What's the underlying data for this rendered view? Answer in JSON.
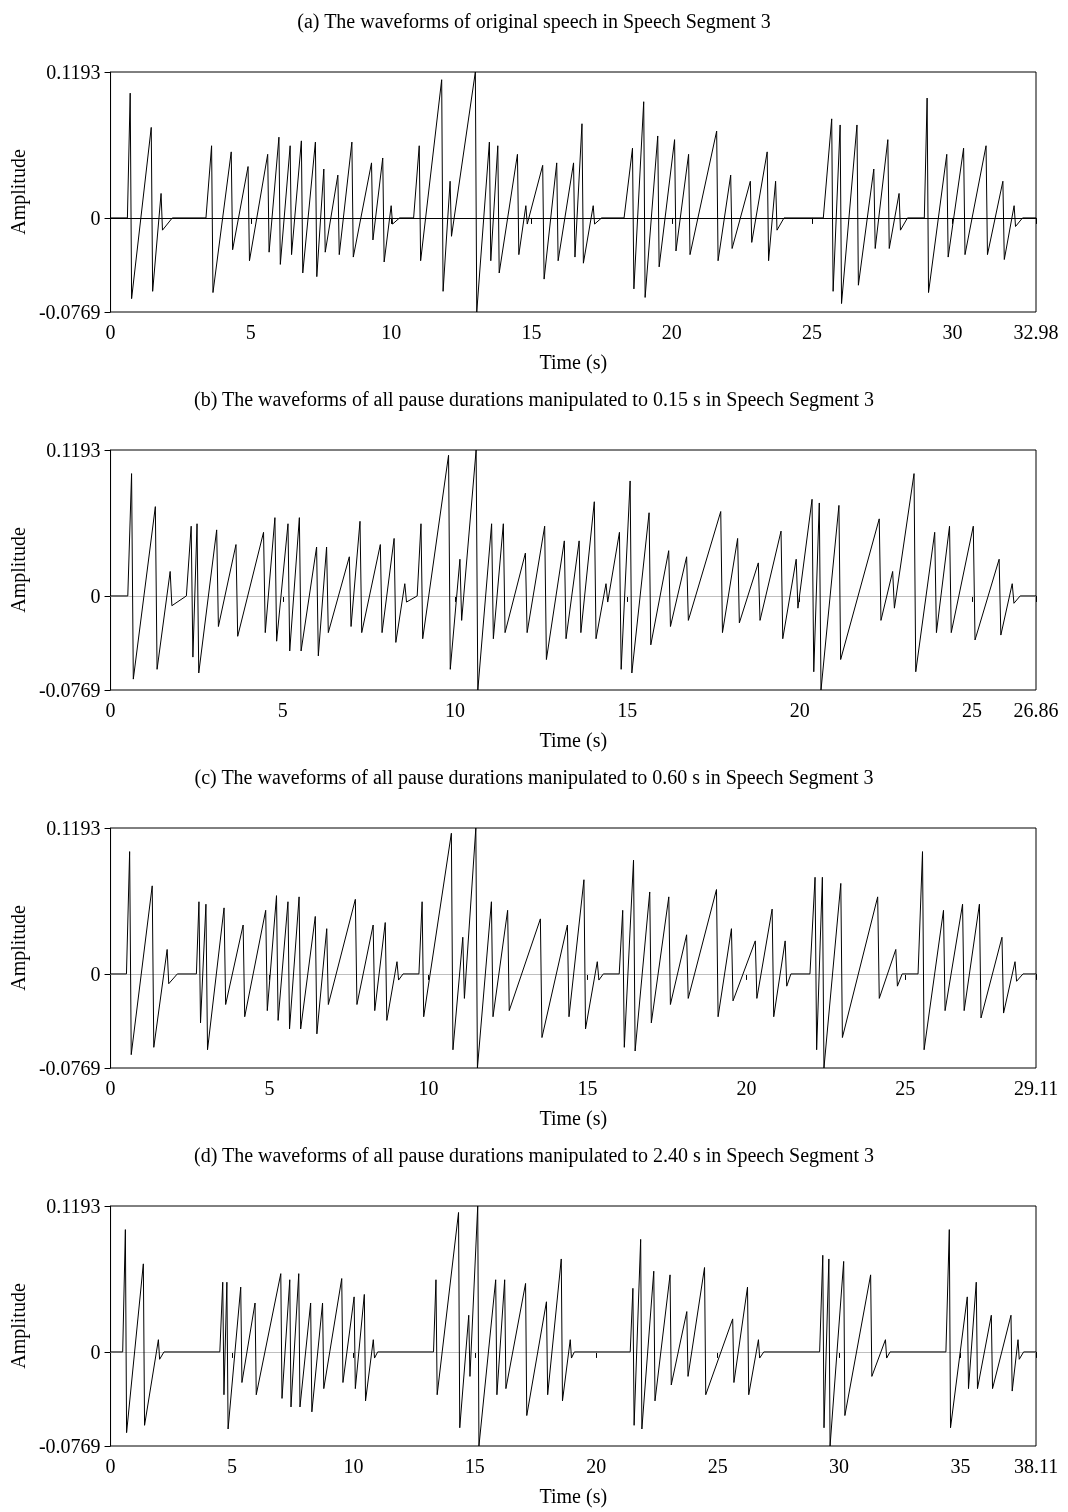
{
  "chart_data": [
    {
      "type": "line",
      "title": "(a) The waveforms of original speech in Speech Segment 3",
      "xlabel": "Time (s)",
      "ylabel": "Amplitude",
      "marker": "none",
      "xlim": [
        0,
        32.98
      ],
      "xticks": [
        0,
        5,
        10,
        15,
        20,
        25,
        30,
        32.98
      ],
      "ylim": [
        -0.0769,
        0.1193
      ],
      "yticks": [
        -0.0769,
        0,
        0.1193
      ],
      "ref_lines": [
        {
          "axis": "y",
          "value": 0,
          "color": "#000000"
        }
      ],
      "series": [
        {
          "color": "#000000",
          "x": [
            0,
            0.6,
            0.7,
            0.75,
            1.45,
            1.5,
            1.8,
            1.85,
            2.2,
            3.4,
            3.6,
            3.65,
            4.3,
            4.35,
            4.9,
            4.95,
            5.6,
            5.65,
            6.0,
            6.05,
            6.4,
            6.45,
            6.8,
            6.85,
            7.3,
            7.35,
            7.6,
            7.65,
            8.1,
            8.15,
            8.6,
            8.65,
            9.3,
            9.35,
            9.7,
            9.75,
            10.0,
            10.05,
            10.3,
            10.8,
            11.0,
            11.05,
            11.8,
            11.85,
            12.1,
            12.15,
            13.0,
            13.05,
            13.5,
            13.55,
            13.8,
            13.85,
            14.5,
            14.55,
            14.8,
            14.85,
            15.4,
            15.45,
            15.9,
            15.95,
            16.5,
            16.55,
            16.8,
            16.85,
            17.2,
            17.25,
            17.5,
            18.3,
            18.6,
            18.65,
            19.0,
            19.05,
            19.5,
            19.55,
            20.1,
            20.15,
            20.6,
            20.65,
            21.6,
            21.65,
            22.1,
            22.15,
            22.8,
            22.85,
            23.4,
            23.45,
            23.7,
            23.75,
            24.0,
            25.4,
            25.7,
            25.75,
            26.0,
            26.05,
            26.6,
            26.65,
            27.2,
            27.25,
            27.7,
            27.75,
            28.1,
            28.15,
            28.4,
            29.0,
            29.1,
            29.15,
            29.8,
            29.85,
            30.4,
            30.45,
            31.2,
            31.25,
            31.8,
            31.85,
            32.2,
            32.25,
            32.5,
            32.98
          ],
          "values": [
            0,
            0,
            0.102,
            -0.066,
            0.074,
            -0.06,
            0.02,
            -0.01,
            0,
            0,
            0.059,
            -0.061,
            0.054,
            -0.026,
            0.042,
            -0.035,
            0.052,
            -0.028,
            0.066,
            -0.038,
            0.059,
            -0.03,
            0.063,
            -0.045,
            0.062,
            -0.048,
            0.04,
            -0.028,
            0.035,
            -0.03,
            0.062,
            -0.032,
            0.045,
            -0.018,
            0.049,
            -0.036,
            0.01,
            -0.005,
            0,
            0,
            0.059,
            -0.035,
            0.113,
            -0.06,
            0.03,
            -0.015,
            0.1193,
            -0.0769,
            0.062,
            -0.035,
            0.059,
            -0.045,
            0.052,
            -0.03,
            0.01,
            -0.005,
            0.043,
            -0.05,
            0.045,
            -0.035,
            0.045,
            -0.032,
            0.077,
            -0.037,
            0.01,
            -0.005,
            0,
            0,
            0.057,
            -0.058,
            0.095,
            -0.065,
            0.067,
            -0.04,
            0.064,
            -0.027,
            0.052,
            -0.03,
            0.071,
            -0.035,
            0.035,
            -0.025,
            0.03,
            -0.02,
            0.054,
            -0.035,
            0.03,
            -0.01,
            0,
            0,
            0.081,
            -0.06,
            0.076,
            -0.07,
            0.076,
            -0.055,
            0.04,
            -0.025,
            0.064,
            -0.025,
            0.02,
            -0.01,
            0,
            0,
            0.098,
            -0.061,
            0.052,
            -0.032,
            0.057,
            -0.03,
            0.059,
            -0.03,
            0.03,
            -0.034,
            0.01,
            -0.007,
            0,
            0
          ]
        }
      ]
    },
    {
      "type": "line",
      "title": "(b) The waveforms of all pause durations manipulated to 0.15 s in Speech Segment 3",
      "xlabel": "Time (s)",
      "ylabel": "Amplitude",
      "marker": "none",
      "xlim": [
        0,
        26.86
      ],
      "xticks": [
        0,
        5,
        10,
        15,
        20,
        25,
        26.86
      ],
      "ylim": [
        -0.0769,
        0.1193
      ],
      "yticks": [
        -0.0769,
        0,
        0.1193
      ],
      "ref_lines": [
        {
          "axis": "y",
          "value": 0,
          "color": "#bfbfbf"
        }
      ],
      "series": [
        {
          "color": "#000000",
          "x": [
            0,
            0.5,
            0.61,
            0.66,
            1.3,
            1.35,
            1.73,
            1.78,
            2.2,
            2.34,
            2.39,
            2.51,
            2.56,
            3.08,
            3.13,
            3.64,
            3.69,
            4.44,
            4.49,
            4.77,
            4.82,
            5.15,
            5.2,
            5.48,
            5.53,
            5.98,
            6.03,
            6.27,
            6.32,
            6.93,
            6.98,
            7.24,
            7.29,
            7.83,
            7.88,
            8.23,
            8.28,
            8.54,
            8.59,
            8.9,
            9.01,
            9.06,
            9.81,
            9.86,
            10.14,
            10.19,
            10.61,
            10.66,
            11.06,
            11.11,
            11.4,
            11.45,
            12.04,
            12.09,
            12.6,
            12.65,
            13.17,
            13.22,
            13.6,
            13.65,
            14.04,
            14.09,
            14.38,
            14.43,
            14.77,
            14.82,
            15.08,
            15.13,
            15.63,
            15.68,
            16.2,
            16.25,
            16.72,
            16.77,
            17.71,
            17.76,
            18.2,
            18.25,
            18.8,
            18.85,
            19.46,
            19.51,
            19.9,
            19.95,
            20.36,
            20.41,
            20.57,
            20.62,
            21.14,
            21.19,
            22.31,
            22.36,
            22.7,
            22.75,
            23.32,
            23.37,
            23.92,
            23.97,
            24.35,
            24.4,
            25.04,
            25.09,
            25.79,
            25.84,
            26.17,
            26.22,
            26.4,
            26.86
          ],
          "values": [
            0,
            0,
            0.1,
            -0.068,
            0.073,
            -0.06,
            0.02,
            -0.008,
            0,
            0.057,
            -0.05,
            0.059,
            -0.063,
            0.054,
            -0.025,
            0.042,
            -0.033,
            0.052,
            -0.03,
            0.064,
            -0.037,
            0.059,
            -0.045,
            0.064,
            -0.045,
            0.04,
            -0.049,
            0.04,
            -0.03,
            0.032,
            -0.025,
            0.061,
            -0.03,
            0.042,
            -0.03,
            0.047,
            -0.038,
            0.01,
            -0.005,
            0,
            0.059,
            -0.035,
            0.115,
            -0.06,
            0.03,
            -0.02,
            0.1193,
            -0.0769,
            0.059,
            -0.035,
            0.059,
            -0.03,
            0.035,
            -0.03,
            0.057,
            -0.052,
            0.045,
            -0.035,
            0.045,
            -0.03,
            0.077,
            -0.035,
            0.01,
            -0.005,
            0.052,
            -0.06,
            0.094,
            -0.063,
            0.068,
            -0.04,
            0.037,
            -0.025,
            0.032,
            -0.02,
            0.069,
            -0.03,
            0.047,
            -0.022,
            0.027,
            -0.02,
            0.053,
            -0.035,
            0.03,
            -0.01,
            0.079,
            -0.062,
            0.076,
            -0.0769,
            0.074,
            -0.052,
            0.063,
            -0.02,
            0.02,
            -0.01,
            0.1,
            -0.062,
            0.052,
            -0.03,
            0.057,
            -0.03,
            0.057,
            -0.036,
            0.03,
            -0.032,
            0.01,
            -0.006,
            0,
            0
          ]
        }
      ]
    },
    {
      "type": "line",
      "title": "(c) The waveforms of all pause durations manipulated to 0.60 s in Speech Segment 3",
      "xlabel": "Time (s)",
      "ylabel": "Amplitude",
      "marker": "none",
      "xlim": [
        0,
        29.11
      ],
      "xticks": [
        0,
        5,
        10,
        15,
        20,
        25,
        29.11
      ],
      "ylim": [
        -0.0769,
        0.1193
      ],
      "yticks": [
        -0.0769,
        0,
        0.1193
      ],
      "ref_lines": [
        {
          "axis": "y",
          "value": 0,
          "color": "#bfbfbf"
        }
      ],
      "series": [
        {
          "color": "#000000",
          "x": [
            0,
            0.5,
            0.6,
            0.65,
            1.31,
            1.36,
            1.78,
            1.83,
            2.1,
            2.7,
            2.78,
            2.83,
            3.0,
            3.05,
            3.57,
            3.62,
            4.17,
            4.22,
            4.88,
            4.93,
            5.22,
            5.27,
            5.58,
            5.63,
            5.93,
            5.98,
            6.44,
            6.49,
            6.8,
            6.85,
            7.7,
            7.75,
            8.26,
            8.31,
            8.64,
            8.69,
            9.01,
            9.06,
            9.2,
            9.7,
            9.8,
            9.85,
            10.72,
            10.77,
            11.08,
            11.13,
            11.49,
            11.54,
            11.98,
            12.03,
            12.49,
            12.54,
            13.52,
            13.57,
            14.37,
            14.42,
            14.89,
            14.94,
            15.31,
            15.36,
            15.5,
            16.0,
            16.11,
            16.16,
            16.45,
            16.5,
            16.96,
            17.01,
            17.56,
            17.61,
            18.12,
            18.17,
            19.06,
            19.11,
            19.53,
            19.58,
            20.28,
            20.33,
            20.81,
            20.86,
            21.22,
            21.27,
            21.4,
            22.0,
            22.16,
            22.21,
            22.39,
            22.44,
            22.97,
            23.02,
            24.13,
            24.18,
            24.7,
            24.75,
            24.9,
            25.4,
            25.54,
            25.59,
            26.2,
            26.25,
            26.8,
            26.85,
            27.33,
            27.38,
            28.04,
            28.09,
            28.45,
            28.5,
            28.7,
            29.11
          ],
          "values": [
            0,
            0,
            0.1,
            -0.066,
            0.072,
            -0.06,
            0.02,
            -0.008,
            0,
            0,
            0.059,
            -0.04,
            0.057,
            -0.062,
            0.054,
            -0.025,
            0.04,
            -0.035,
            0.052,
            -0.03,
            0.064,
            -0.038,
            0.059,
            -0.045,
            0.063,
            -0.045,
            0.047,
            -0.049,
            0.037,
            -0.025,
            0.061,
            -0.025,
            0.04,
            -0.03,
            0.042,
            -0.038,
            0.01,
            -0.005,
            0,
            0,
            0.059,
            -0.035,
            0.115,
            -0.062,
            0.03,
            -0.02,
            0.1193,
            -0.0769,
            0.059,
            -0.035,
            0.052,
            -0.03,
            0.045,
            -0.052,
            0.04,
            -0.035,
            0.077,
            -0.045,
            0.01,
            -0.005,
            0,
            0,
            0.052,
            -0.06,
            0.093,
            -0.063,
            0.067,
            -0.04,
            0.063,
            -0.025,
            0.032,
            -0.02,
            0.069,
            -0.035,
            0.037,
            -0.022,
            0.027,
            -0.02,
            0.053,
            -0.035,
            0.027,
            -0.01,
            0,
            0,
            0.079,
            -0.062,
            0.079,
            -0.0769,
            0.074,
            -0.052,
            0.063,
            -0.02,
            0.02,
            -0.01,
            0,
            0,
            0.1,
            -0.062,
            0.052,
            -0.03,
            0.057,
            -0.03,
            0.057,
            -0.036,
            0.03,
            -0.032,
            0.01,
            -0.006,
            0,
            0
          ]
        }
      ]
    },
    {
      "type": "line",
      "title": "(d) The waveforms of all pause durations manipulated to 2.40 s in Speech Segment 3",
      "xlabel": "Time (s)",
      "ylabel": "Amplitude",
      "marker": "none",
      "xlim": [
        0,
        38.11
      ],
      "xticks": [
        0,
        5,
        10,
        15,
        20,
        25,
        30,
        35,
        38.11
      ],
      "ylim": [
        -0.0769,
        0.1193
      ],
      "yticks": [
        -0.0769,
        0,
        0.1193
      ],
      "ref_lines": [
        {
          "axis": "y",
          "value": 0,
          "color": "#bfbfbf"
        }
      ],
      "series": [
        {
          "color": "#000000",
          "x": [
            0,
            0.5,
            0.61,
            0.66,
            1.35,
            1.4,
            1.97,
            2.02,
            2.2,
            4.5,
            4.62,
            4.67,
            4.79,
            4.84,
            5.36,
            5.41,
            5.95,
            6.0,
            7.01,
            7.06,
            7.38,
            7.43,
            7.75,
            7.8,
            8.24,
            8.29,
            8.73,
            8.78,
            9.52,
            9.57,
            10.03,
            10.08,
            10.45,
            10.5,
            10.82,
            10.87,
            11.0,
            13.3,
            13.4,
            13.45,
            14.33,
            14.38,
            14.75,
            14.8,
            15.12,
            15.17,
            15.86,
            15.91,
            16.23,
            16.28,
            17.09,
            17.14,
            17.95,
            18.0,
            18.56,
            18.61,
            18.93,
            18.98,
            19.1,
            21.4,
            21.51,
            21.56,
            21.83,
            21.88,
            22.37,
            22.42,
            23.04,
            23.09,
            23.73,
            23.78,
            24.46,
            24.51,
            25.62,
            25.67,
            26.23,
            26.28,
            26.68,
            26.73,
            26.9,
            29.2,
            29.33,
            29.38,
            29.58,
            29.63,
            30.19,
            30.24,
            31.3,
            31.35,
            31.91,
            31.96,
            32.1,
            34.4,
            34.54,
            34.59,
            35.28,
            35.33,
            35.65,
            35.7,
            36.27,
            36.32,
            37.08,
            37.13,
            37.37,
            37.42,
            37.6,
            38.11
          ],
          "values": [
            0,
            0,
            0.1,
            -0.066,
            0.072,
            -0.06,
            0.01,
            -0.006,
            0,
            0,
            0.057,
            -0.035,
            0.057,
            -0.063,
            0.053,
            -0.025,
            0.04,
            -0.035,
            0.064,
            -0.038,
            0.059,
            -0.045,
            0.064,
            -0.045,
            0.04,
            -0.049,
            0.04,
            -0.03,
            0.06,
            -0.025,
            0.045,
            -0.03,
            0.047,
            -0.04,
            0.01,
            -0.005,
            0,
            0,
            0.059,
            -0.035,
            0.114,
            -0.062,
            0.03,
            -0.02,
            0.1193,
            -0.0769,
            0.059,
            -0.035,
            0.059,
            -0.03,
            0.056,
            -0.052,
            0.041,
            -0.035,
            0.076,
            -0.04,
            0.01,
            -0.005,
            0,
            0,
            0.052,
            -0.06,
            0.092,
            -0.063,
            0.066,
            -0.04,
            0.063,
            -0.027,
            0.033,
            -0.02,
            0.069,
            -0.035,
            0.027,
            -0.025,
            0.053,
            -0.035,
            0.01,
            -0.005,
            0,
            0,
            0.079,
            -0.062,
            0.076,
            -0.0769,
            0.074,
            -0.052,
            0.063,
            -0.02,
            0.01,
            -0.005,
            0,
            0,
            0.1,
            -0.062,
            0.045,
            -0.03,
            0.057,
            -0.03,
            0.03,
            -0.03,
            0.03,
            -0.032,
            0.01,
            -0.006,
            0,
            0
          ]
        }
      ]
    }
  ]
}
